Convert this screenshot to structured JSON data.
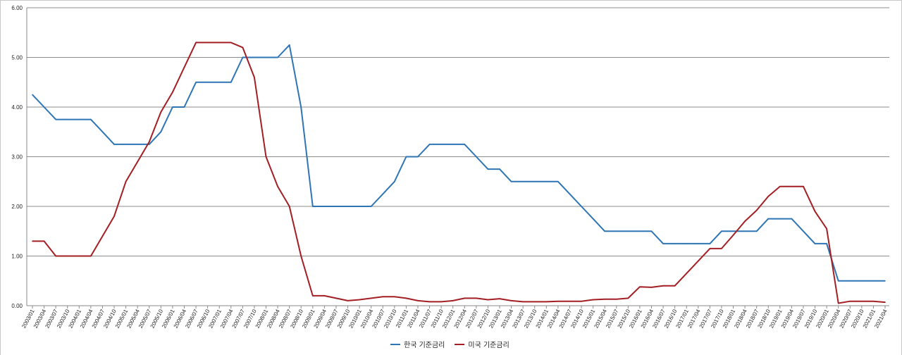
{
  "chart_data": {
    "type": "line",
    "xlabel": "",
    "ylabel": "",
    "ylim": [
      0,
      6
    ],
    "y_ticks": [
      "0.00",
      "1.00",
      "2.00",
      "3.00",
      "4.00",
      "5.00",
      "6.00"
    ],
    "grid": true,
    "legend_position": "bottom",
    "x": [
      "2003/01",
      "2003/04",
      "2003/07",
      "2003/10",
      "2004/01",
      "2004/04",
      "2004/07",
      "2004/10",
      "2005/01",
      "2005/04",
      "2005/07",
      "2005/10",
      "2006/01",
      "2006/04",
      "2006/07",
      "2006/10",
      "2007/01",
      "2007/04",
      "2007/07",
      "2007/10",
      "2008/01",
      "2008/04",
      "2008/07",
      "2008/10",
      "2009/01",
      "2009/04",
      "2009/07",
      "2009/10",
      "2010/01",
      "2010/04",
      "2010/07",
      "2010/10",
      "2011/01",
      "2011/04",
      "2011/07",
      "2011/10",
      "2012/01",
      "2012/04",
      "2012/07",
      "2012/10",
      "2013/01",
      "2013/04",
      "2013/07",
      "2013/10",
      "2014/01",
      "2014/04",
      "2014/07",
      "2014/10",
      "2015/01",
      "2015/04",
      "2015/07",
      "2015/10",
      "2016/01",
      "2016/04",
      "2016/07",
      "2016/10",
      "2017/01",
      "2017/04",
      "2017/07",
      "2017/10",
      "2018/01",
      "2018/04",
      "2018/07",
      "2018/10",
      "2019/01",
      "2019/04",
      "2019/07",
      "2019/10",
      "2020/01",
      "2020/04",
      "2020/07",
      "2020/10",
      "2021/01",
      "2021/04"
    ],
    "series": [
      {
        "name": "한국 기준금리",
        "color": "#2e75b6",
        "values": [
          4.25,
          4.0,
          3.75,
          3.75,
          3.75,
          3.75,
          3.5,
          3.25,
          3.25,
          3.25,
          3.25,
          3.5,
          4.0,
          4.0,
          4.5,
          4.5,
          4.5,
          4.5,
          5.0,
          5.0,
          5.0,
          5.0,
          5.25,
          4.0,
          2.0,
          2.0,
          2.0,
          2.0,
          2.0,
          2.0,
          2.25,
          2.5,
          3.0,
          3.0,
          3.25,
          3.25,
          3.25,
          3.25,
          3.0,
          2.75,
          2.75,
          2.5,
          2.5,
          2.5,
          2.5,
          2.5,
          2.25,
          2.0,
          1.75,
          1.5,
          1.5,
          1.5,
          1.5,
          1.5,
          1.25,
          1.25,
          1.25,
          1.25,
          1.25,
          1.5,
          1.5,
          1.5,
          1.5,
          1.75,
          1.75,
          1.75,
          1.5,
          1.25,
          1.25,
          0.5,
          0.5,
          0.5,
          0.5,
          0.5
        ]
      },
      {
        "name": "미국 기준금리",
        "color": "#a31f24",
        "values": [
          1.3,
          1.3,
          1.0,
          1.0,
          1.0,
          1.0,
          1.4,
          1.8,
          2.5,
          2.9,
          3.3,
          3.9,
          4.3,
          4.8,
          5.3,
          5.3,
          5.3,
          5.3,
          5.2,
          4.6,
          3.0,
          2.4,
          2.0,
          1.0,
          0.2,
          0.2,
          0.15,
          0.1,
          0.12,
          0.15,
          0.18,
          0.18,
          0.15,
          0.1,
          0.08,
          0.08,
          0.1,
          0.15,
          0.15,
          0.12,
          0.14,
          0.1,
          0.08,
          0.08,
          0.08,
          0.09,
          0.09,
          0.09,
          0.12,
          0.13,
          0.13,
          0.15,
          0.38,
          0.37,
          0.4,
          0.4,
          0.65,
          0.9,
          1.15,
          1.15,
          1.42,
          1.7,
          1.92,
          2.2,
          2.4,
          2.4,
          2.4,
          1.9,
          1.55,
          0.05,
          0.09,
          0.09,
          0.09,
          0.07
        ]
      }
    ]
  }
}
